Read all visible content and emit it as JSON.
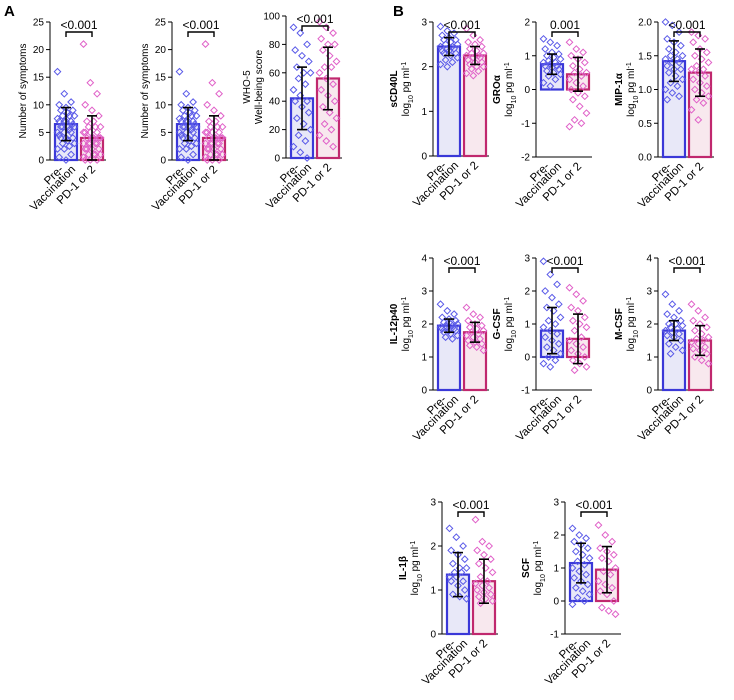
{
  "panels": [
    {
      "letter": "A"
    },
    {
      "letter": "B"
    }
  ],
  "colors": {
    "pre": "#3a38d8",
    "post": "#c0286e",
    "pre_points": "#5a5ae8",
    "post_points": "#e060c8",
    "pre_fill": "#e8e8f8",
    "post_fill": "#f8e8ee",
    "axis": "#000000"
  },
  "chart_data": [
    {
      "id": "A1",
      "type": "bar",
      "panel": "A",
      "title": "",
      "ylabel": [
        "Number of symptoms"
      ],
      "categories": [
        "Pre-\nVaccination",
        "PD-1 or 2"
      ],
      "values": [
        6.5,
        4.0
      ],
      "sd": [
        3.0,
        4.0
      ],
      "ylim": [
        0,
        25
      ],
      "yticks": [
        0,
        5,
        10,
        15,
        20,
        25
      ],
      "p": "<0.001",
      "points": [
        [
          16,
          12,
          10.5,
          10,
          9.5,
          9,
          9,
          8.5,
          8,
          8,
          8,
          7.5,
          7,
          7,
          7,
          7,
          6.5,
          6,
          6,
          6,
          6,
          5.5,
          5,
          5,
          5,
          4.5,
          4,
          4,
          4,
          3.5,
          3,
          3,
          2.5,
          2,
          2,
          1,
          0.5,
          0
        ],
        [
          21,
          14,
          12,
          10,
          9,
          8,
          7,
          7,
          6,
          6,
          6,
          5,
          5,
          5,
          5,
          4,
          4,
          4,
          4,
          4,
          3,
          3,
          3,
          3,
          3,
          2,
          2,
          2,
          2,
          1,
          1,
          1,
          1,
          0.5,
          0,
          0,
          0
        ]
      ]
    },
    {
      "id": "A2",
      "type": "bar",
      "panel": "A",
      "title": "",
      "ylabel": [
        "Number of symptoms"
      ],
      "categories": [
        "Pre-\nVaccination",
        "PD-1 or 2"
      ],
      "values": [
        6.5,
        4.0
      ],
      "sd": [
        3.0,
        4.0
      ],
      "ylim": [
        0,
        25
      ],
      "yticks": [
        0,
        5,
        10,
        15,
        20,
        25
      ],
      "p": "<0.001",
      "points": [
        [
          16,
          12,
          10.5,
          10,
          9.5,
          9,
          9,
          8.5,
          8,
          8,
          8,
          7.5,
          7,
          7,
          7,
          7,
          6.5,
          6,
          6,
          6,
          6,
          5.5,
          5,
          5,
          5,
          4.5,
          4,
          4,
          4,
          3.5,
          3,
          3,
          2.5,
          2,
          2,
          1,
          0.5,
          0
        ],
        [
          21,
          14,
          12,
          10,
          9,
          8,
          7,
          7,
          6,
          6,
          6,
          5,
          5,
          5,
          5,
          4,
          4,
          4,
          4,
          4,
          3,
          3,
          3,
          3,
          3,
          2,
          2,
          2,
          2,
          1,
          1,
          1,
          1,
          0.5,
          0,
          0,
          0
        ]
      ]
    },
    {
      "id": "A3",
      "type": "bar",
      "panel": "A",
      "title": "",
      "ylabel": [
        "WHO-5",
        "Well-being score"
      ],
      "categories": [
        "Pre-\nVaccination",
        "PD-1 or 2"
      ],
      "values": [
        42,
        56
      ],
      "sd": [
        22,
        22
      ],
      "ylim": [
        0,
        100
      ],
      "yticks": [
        0,
        20,
        40,
        60,
        80,
        100
      ],
      "p": "<0.001",
      "points": [
        [
          92,
          88,
          80,
          76,
          72,
          68,
          64,
          60,
          60,
          56,
          52,
          48,
          44,
          40,
          40,
          36,
          32,
          28,
          24,
          20,
          16,
          12,
          8,
          4,
          0
        ],
        [
          96,
          92,
          88,
          84,
          80,
          80,
          76,
          72,
          68,
          64,
          64,
          60,
          56,
          52,
          48,
          44,
          40,
          36,
          32,
          28,
          24,
          20,
          16,
          12,
          8
        ]
      ]
    },
    {
      "id": "B1",
      "type": "bar",
      "panel": "B",
      "title": "",
      "ylabel": [
        "sCD40L",
        "log10 pg ml-1"
      ],
      "categories": [
        "Pre-\nVaccination",
        "PD-1 or 2"
      ],
      "values": [
        2.45,
        2.25
      ],
      "sd": [
        0.2,
        0.2
      ],
      "ylim": [
        0,
        3
      ],
      "yticks": [
        0,
        1,
        2,
        3
      ],
      "p": "<0.001",
      "points": [
        [
          2.9,
          2.8,
          2.75,
          2.7,
          2.65,
          2.6,
          2.6,
          2.55,
          2.5,
          2.5,
          2.45,
          2.45,
          2.4,
          2.4,
          2.35,
          2.35,
          2.3,
          2.3,
          2.25,
          2.2,
          2.15,
          2.1,
          2.05,
          2.0
        ],
        [
          2.85,
          2.7,
          2.6,
          2.55,
          2.5,
          2.45,
          2.4,
          2.35,
          2.3,
          2.3,
          2.25,
          2.25,
          2.2,
          2.2,
          2.15,
          2.1,
          2.1,
          2.05,
          2.0,
          2.0,
          1.95,
          1.9,
          1.85,
          1.8
        ]
      ]
    },
    {
      "id": "B2",
      "type": "bar",
      "panel": "B",
      "title": "",
      "ylabel": [
        "GROα",
        "log10 pg ml-1"
      ],
      "categories": [
        "Pre-\nVaccination",
        "PD-1 or 2"
      ],
      "values": [
        0.75,
        0.45
      ],
      "sd": [
        0.3,
        0.5
      ],
      "ylim": [
        -2,
        2
      ],
      "yticks": [
        -2,
        -1,
        0,
        1,
        2
      ],
      "p": "0.001",
      "points": [
        [
          1.5,
          1.4,
          1.3,
          1.2,
          1.1,
          1.05,
          1.0,
          0.95,
          0.9,
          0.85,
          0.8,
          0.8,
          0.75,
          0.7,
          0.7,
          0.65,
          0.6,
          0.55,
          0.5,
          0.45,
          0.4,
          0.3,
          0.2,
          0.1
        ],
        [
          1.4,
          1.2,
          1.1,
          1.0,
          0.9,
          0.8,
          0.7,
          0.6,
          0.5,
          0.5,
          0.4,
          0.3,
          0.2,
          0.1,
          0.0,
          -0.1,
          -0.2,
          -0.3,
          -0.5,
          -0.7,
          -0.9,
          -1.0,
          -1.1
        ]
      ]
    },
    {
      "id": "B3",
      "type": "bar",
      "panel": "B",
      "title": "",
      "ylabel": [
        "MIP-1α",
        "log10 pg ml-1"
      ],
      "categories": [
        "Pre-\nVaccination",
        "PD-1 or 2"
      ],
      "values": [
        1.42,
        1.25
      ],
      "sd": [
        0.3,
        0.35
      ],
      "ylim": [
        0,
        2
      ],
      "yticks": [
        0,
        0.5,
        1.0,
        1.5,
        2.0
      ],
      "p": "<0.001",
      "points": [
        [
          2.05,
          1.95,
          1.85,
          1.75,
          1.7,
          1.65,
          1.6,
          1.55,
          1.5,
          1.5,
          1.45,
          1.45,
          1.4,
          1.4,
          1.35,
          1.3,
          1.3,
          1.25,
          1.2,
          1.15,
          1.1,
          1.05,
          1.0,
          0.95,
          0.9,
          0.85
        ],
        [
          1.85,
          1.8,
          1.75,
          1.7,
          1.6,
          1.55,
          1.5,
          1.45,
          1.4,
          1.35,
          1.3,
          1.3,
          1.25,
          1.2,
          1.15,
          1.1,
          1.05,
          1.0,
          0.95,
          0.9,
          0.85,
          0.8,
          0.7,
          0.55
        ]
      ]
    },
    {
      "id": "B4",
      "type": "bar",
      "panel": "B",
      "title": "",
      "ylabel": [
        "IL-12p40",
        "log10 pg ml-1"
      ],
      "categories": [
        "Pre-\nVaccination",
        "PD-1 or 2"
      ],
      "values": [
        1.95,
        1.75
      ],
      "sd": [
        0.2,
        0.3
      ],
      "ylim": [
        0,
        4
      ],
      "yticks": [
        0,
        1,
        2,
        3,
        4
      ],
      "p": "<0.001",
      "points": [
        [
          2.6,
          2.4,
          2.3,
          2.2,
          2.15,
          2.1,
          2.05,
          2.0,
          2.0,
          1.95,
          1.95,
          1.9,
          1.9,
          1.85,
          1.85,
          1.8,
          1.8,
          1.75,
          1.7,
          1.65,
          1.6,
          1.55
        ],
        [
          2.5,
          2.3,
          2.2,
          2.1,
          2.0,
          1.95,
          1.9,
          1.85,
          1.8,
          1.75,
          1.7,
          1.65,
          1.6,
          1.55,
          1.5,
          1.45,
          1.4,
          1.35,
          1.3,
          1.2
        ]
      ]
    },
    {
      "id": "B5",
      "type": "bar",
      "panel": "B",
      "title": "",
      "ylabel": [
        "G-CSF",
        "log10 pg ml-1"
      ],
      "categories": [
        "Pre-\nVaccination",
        "PD-1 or 2"
      ],
      "values": [
        0.8,
        0.55
      ],
      "sd": [
        0.7,
        0.75
      ],
      "ylim": [
        -1,
        3
      ],
      "yticks": [
        -1,
        0,
        1,
        2,
        3
      ],
      "p": "<0.001",
      "points": [
        [
          2.9,
          2.5,
          2.2,
          2.0,
          1.8,
          1.6,
          1.5,
          1.4,
          1.2,
          1.1,
          1.0,
          0.9,
          0.8,
          0.7,
          0.6,
          0.5,
          0.4,
          0.3,
          0.2,
          0.1,
          0.0,
          -0.1,
          -0.2,
          -0.3
        ],
        [
          2.1,
          1.9,
          1.7,
          1.5,
          1.4,
          1.2,
          1.1,
          1.0,
          0.9,
          0.8,
          0.6,
          0.5,
          0.4,
          0.3,
          0.2,
          0.1,
          0.0,
          -0.1,
          -0.2,
          -0.3,
          -0.4
        ]
      ]
    },
    {
      "id": "B6",
      "type": "bar",
      "panel": "B",
      "title": "",
      "ylabel": [
        "M-CSF",
        "log10 pg ml-1"
      ],
      "categories": [
        "Pre-\nVaccination",
        "PD-1 or 2"
      ],
      "values": [
        1.8,
        1.5
      ],
      "sd": [
        0.3,
        0.45
      ],
      "ylim": [
        0,
        4
      ],
      "yticks": [
        0,
        1,
        2,
        3,
        4
      ],
      "p": "<0.001",
      "points": [
        [
          2.9,
          2.6,
          2.4,
          2.3,
          2.2,
          2.1,
          2.0,
          2.0,
          1.95,
          1.9,
          1.85,
          1.8,
          1.75,
          1.7,
          1.65,
          1.6,
          1.5,
          1.4,
          1.3,
          1.2,
          1.1
        ],
        [
          2.6,
          2.4,
          2.2,
          2.1,
          2.0,
          1.9,
          1.8,
          1.7,
          1.6,
          1.55,
          1.5,
          1.45,
          1.4,
          1.3,
          1.25,
          1.2,
          1.1,
          1.0,
          0.9,
          0.8
        ]
      ]
    },
    {
      "id": "B7",
      "type": "bar",
      "panel": "B",
      "title": "",
      "ylabel": [
        "IL-1β",
        "log10 pg ml-1"
      ],
      "categories": [
        "Pre-\nVaccination",
        "PD-1 or 2"
      ],
      "values": [
        1.35,
        1.2
      ],
      "sd": [
        0.5,
        0.5
      ],
      "ylim": [
        0,
        3
      ],
      "yticks": [
        0,
        1,
        2,
        3
      ],
      "p": "<0.001",
      "points": [
        [
          2.4,
          2.2,
          2.0,
          1.9,
          1.8,
          1.7,
          1.6,
          1.5,
          1.5,
          1.4,
          1.4,
          1.3,
          1.3,
          1.2,
          1.2,
          1.1,
          1.0,
          0.9,
          0.85,
          0.8
        ],
        [
          2.6,
          2.1,
          2.0,
          1.9,
          1.8,
          1.7,
          1.6,
          1.5,
          1.4,
          1.3,
          1.2,
          1.15,
          1.1,
          1.05,
          1.0,
          0.95,
          0.9,
          0.85,
          0.8,
          0.75,
          0.7
        ]
      ]
    },
    {
      "id": "B8",
      "type": "bar",
      "panel": "B",
      "title": "",
      "ylabel": [
        "SCF",
        "log10 pg ml-1"
      ],
      "categories": [
        "Pre-\nVaccination",
        "PD-1 or 2"
      ],
      "values": [
        1.15,
        0.95
      ],
      "sd": [
        0.6,
        0.7
      ],
      "ylim": [
        -1,
        3
      ],
      "yticks": [
        -1,
        0,
        1,
        2,
        3
      ],
      "p": "<0.001",
      "points": [
        [
          2.2,
          2.0,
          1.9,
          1.8,
          1.7,
          1.6,
          1.5,
          1.4,
          1.3,
          1.2,
          1.1,
          1.0,
          0.9,
          0.8,
          0.7,
          0.6,
          0.5,
          0.4,
          0.3,
          0.2,
          0.1,
          0.0,
          -0.1
        ],
        [
          2.3,
          2.0,
          1.8,
          1.6,
          1.5,
          1.4,
          1.3,
          1.2,
          1.0,
          0.9,
          0.8,
          0.6,
          0.5,
          0.4,
          0.3,
          0.2,
          0.0,
          -0.2,
          -0.3,
          -0.4
        ]
      ]
    }
  ]
}
